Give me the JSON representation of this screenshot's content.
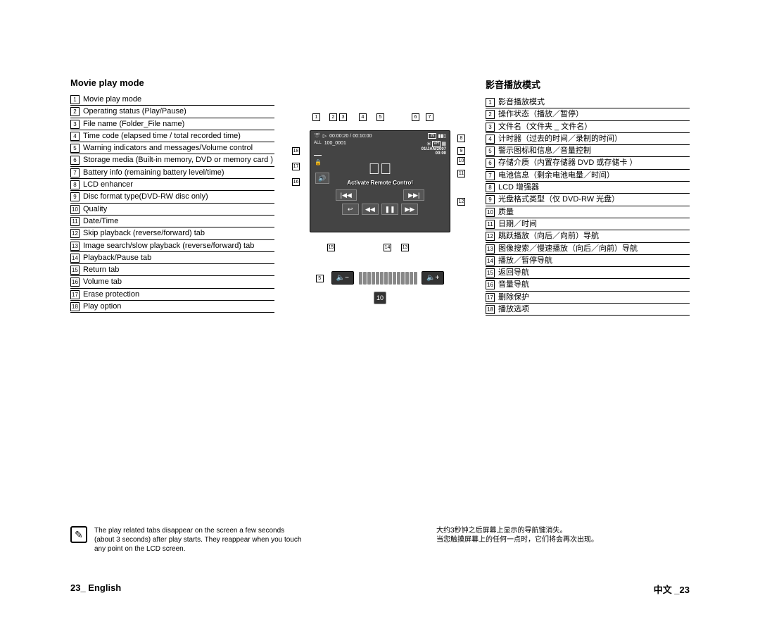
{
  "left": {
    "title": "Movie play mode",
    "items": [
      "Movie play mode",
      "Operating status (Play/Pause)",
      "File name (Folder_File name)",
      "Time code (elapsed time / total recorded time)",
      "Warning indicators and messages/Volume control",
      "Storage media\n(Built-in memory, DVD or memory card )",
      "Battery info (remaining battery level/time)",
      "LCD enhancer",
      "Disc format type(DVD-RW disc only)",
      "Quality",
      "Date/Time",
      "Skip playback (reverse/forward) tab",
      "Image search/slow playback (reverse/forward) tab",
      "Playback/Pause tab",
      "Return tab",
      "Volume tab",
      "Erase protection",
      "Play option"
    ]
  },
  "right": {
    "title": "影音播放模式",
    "items": [
      "影音播放模式",
      "操作状态（播放／暂停）",
      "文件名（文件夹 _ 文件名）",
      "计时器（过去的时间／录制的时间）",
      "警示图标和信息／音量控制",
      "存储介质（内置存储器 DVD 或存储卡 ）",
      "电池信息（剩余电池电量／时间）",
      "LCD 增强器",
      "光盘格式类型（仅 DVD-RW 光盘）",
      "质量",
      "日期／时间",
      "跳跃播放（向后／向前）导航",
      "图像搜索／慢速播放（向后／向前）导航",
      "播放／暂停导航",
      "返回导航",
      "音量导航",
      "删除保护",
      "播放选项"
    ]
  },
  "lcd": {
    "timecode": "00:00:20 / 00:10:00",
    "in_label": "IN",
    "filename": "100_0001",
    "date": "01/JAN/2007",
    "time": "00:00",
    "vr": "VR",
    "all": "ALL",
    "message": "Activate Remote Control"
  },
  "callouts": {
    "c1": "1",
    "c2": "2",
    "c3": "3",
    "c4": "4",
    "c5": "5",
    "c6": "6",
    "c7": "7",
    "c8": "8",
    "c9": "9",
    "c10": "10",
    "c11": "11",
    "c12": "12",
    "c13": "13",
    "c14": "14",
    "c15": "15",
    "c16": "16",
    "c17": "17",
    "c18": "18"
  },
  "volume_box": "10",
  "note_left": "The play related tabs disappear on the screen a few seconds (about 3 seconds) after play starts. They reappear when you touch any point on the LCD screen.",
  "note_right_line1": "大约3秒钟之后屏幕上显示的导航键消失。",
  "note_right_line2": "当您触摸屏幕上的任何一点时，它们将会再次出现。",
  "footer_left": "23_ English",
  "footer_right": "中文 _23",
  "colors": {
    "text": "#000000",
    "lcd_bg": "#444444",
    "lcd_text": "#ffffff",
    "button_bg": "#555555",
    "border": "#000000",
    "vol_seg": "#888888"
  }
}
